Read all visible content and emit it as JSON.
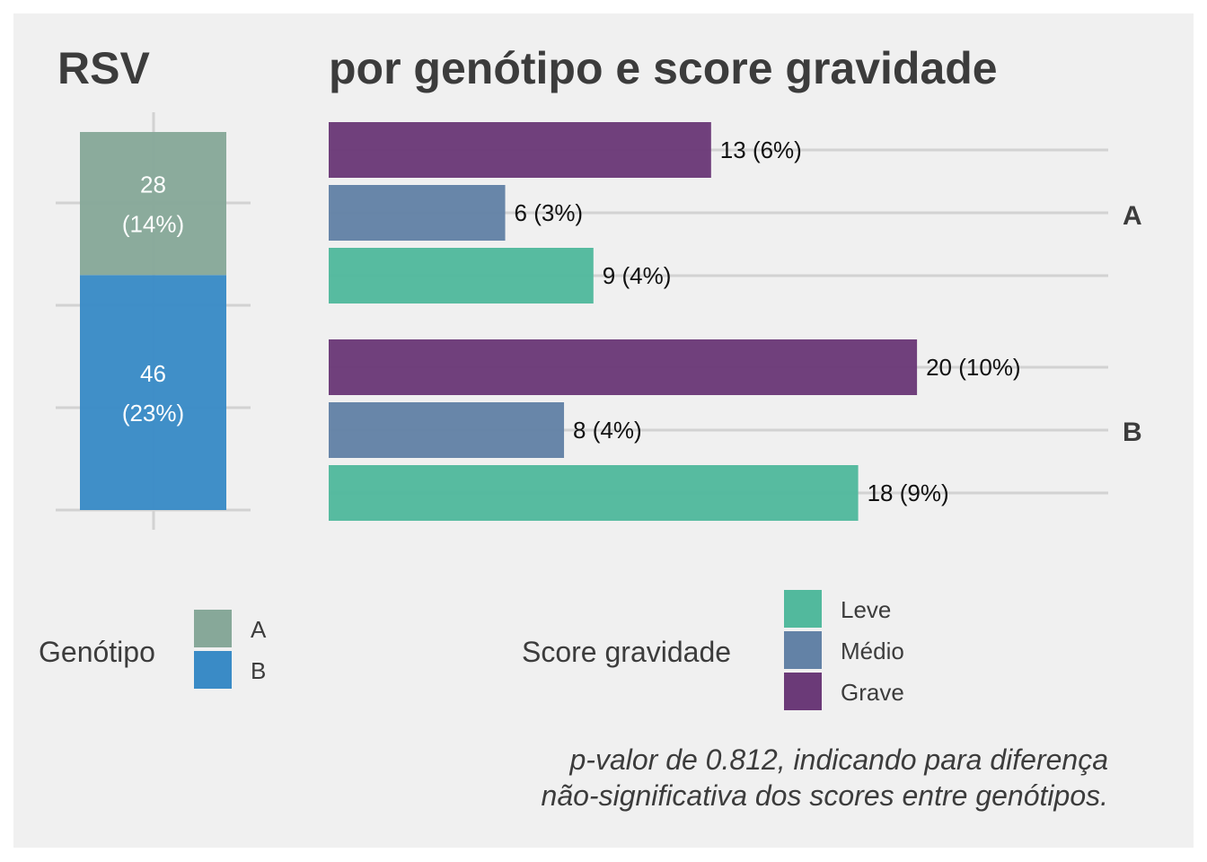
{
  "chart_data": [
    {
      "type": "bar",
      "stacked": true,
      "title": "RSV",
      "categories": [
        "RSV"
      ],
      "series": [
        {
          "name": "A",
          "value": 28,
          "label_n": "28",
          "label_pct": "(14%)",
          "color": "#87a899"
        },
        {
          "name": "B",
          "value": 46,
          "label_n": "46",
          "label_pct": "(23%)",
          "color": "#3a8bc6"
        }
      ],
      "ylim": [
        0,
        74
      ],
      "grid": true,
      "legend": {
        "title": "Genótipo",
        "placement": "bottom-left",
        "items": [
          {
            "name": "A",
            "color": "#87a899"
          },
          {
            "name": "B",
            "color": "#3a8bc6"
          }
        ]
      }
    },
    {
      "type": "bar",
      "orientation": "horizontal",
      "title": "por genótipo e score gravidade",
      "facets": [
        {
          "label": "A",
          "bars": [
            {
              "series": "Grave",
              "value": 13,
              "label": "13 (6%)"
            },
            {
              "series": "Médio",
              "value": 6,
              "label": "6 (3%)"
            },
            {
              "series": "Leve",
              "value": 9,
              "label": "9 (4%)"
            }
          ]
        },
        {
          "label": "B",
          "bars": [
            {
              "series": "Grave",
              "value": 20,
              "label": "20 (10%)"
            },
            {
              "series": "Médio",
              "value": 8,
              "label": "8 (4%)"
            },
            {
              "series": "Leve",
              "value": 18,
              "label": "18 (9%)"
            }
          ]
        }
      ],
      "xlim": [
        0,
        26.5
      ],
      "grid": true,
      "colors": {
        "Leve": "#52b99d",
        "Médio": "#6382a6",
        "Grave": "#6b3a78"
      },
      "legend": {
        "title": "Score gravidade",
        "placement": "bottom-center",
        "items": [
          {
            "name": "Leve",
            "color": "#52b99d"
          },
          {
            "name": "Médio",
            "color": "#6382a6"
          },
          {
            "name": "Grave",
            "color": "#6b3a78"
          }
        ]
      }
    }
  ],
  "caption": {
    "line1": "p-valor de 0.812, indicando para diferença",
    "line2": "não-significativa dos scores entre genótipos."
  }
}
